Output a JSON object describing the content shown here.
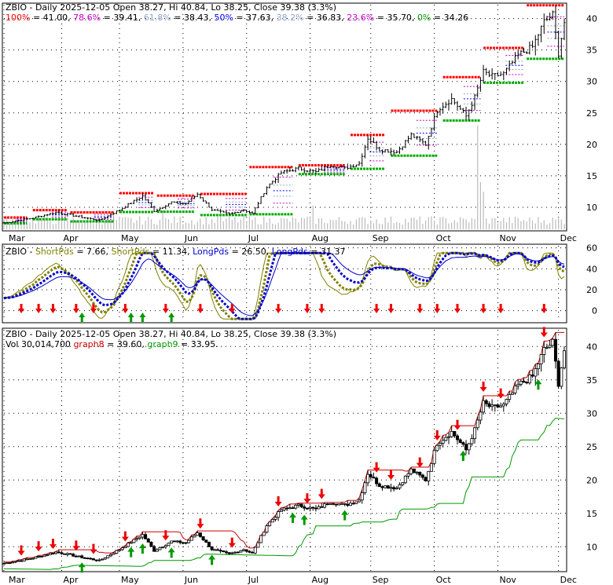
{
  "chart_data": [
    {
      "type": "candlestick",
      "panel": "fibonacci",
      "header": {
        "symbol": "ZBIO - Daily 2025-12-05 Open 38.27, Hi 40.84, Lo 38.25, Close 39.38 (3.3%)",
        "fib_levels": [
          {
            "label": "100%",
            "value": "41.00",
            "color": "#ff0000"
          },
          {
            "label": "78.6%",
            "value": "39.41",
            "color": "#cc00cc"
          },
          {
            "label": "61.8%",
            "value": "38.43",
            "color": "#8fa4c8"
          },
          {
            "label": "50%",
            "value": "37.63",
            "color": "#0000ff"
          },
          {
            "label": "38.2%",
            "value": "36.83",
            "color": "#8fa4c8"
          },
          {
            "label": "23.6%",
            "value": "35.70",
            "color": "#cc00cc"
          },
          {
            "label": "0%",
            "value": "34.26",
            "color": "#009900"
          }
        ]
      },
      "x_months": [
        "Mar",
        "Apr",
        "May",
        "Jun",
        "Jul",
        "Aug",
        "Sep",
        "Oct",
        "Nov",
        "Dec"
      ],
      "y_ticks": [
        10,
        15,
        20,
        25,
        30,
        35,
        40
      ],
      "ylim": [
        6.5,
        42.2
      ]
    },
    {
      "type": "line",
      "panel": "oscillator",
      "header": [
        {
          "text": "ZBIO - ",
          "color": "#000000"
        },
        {
          "text": "ShortPds",
          "color": "#808000"
        },
        {
          "text": " = 7.66, ",
          "color": "#000000"
        },
        {
          "text": "ShortPds",
          "color": "#808000"
        },
        {
          "text": " = 11.34, ",
          "color": "#000000"
        },
        {
          "text": "LongPds",
          "color": "#0000cc"
        },
        {
          "text": " = 26.50, ",
          "color": "#000000"
        },
        {
          "text": "LongPds",
          "color": "#0000cc"
        },
        {
          "text": " = 31.37",
          "color": "#000000"
        }
      ],
      "series": [
        {
          "name": "ShortPds",
          "color": "#808000",
          "last": 7.66
        },
        {
          "name": "ShortPds",
          "color": "#808000",
          "last": 11.34
        },
        {
          "name": "LongPds",
          "color": "#0000cc",
          "last": 26.5
        },
        {
          "name": "LongPds",
          "color": "#0000cc",
          "last": 31.37
        }
      ],
      "y_ticks": [
        0,
        20,
        40,
        60
      ],
      "ylim": [
        -10,
        62
      ]
    },
    {
      "type": "candlestick",
      "panel": "signals",
      "header": {
        "line1": "ZBIO - Daily 2025-12-05 Open 38.27, Hi 40.84, Lo 38.25, Close 39.38 (3.3%)",
        "vol": "Vol 30,014,700",
        "graph8_label": "graph8",
        "graph8_value": " = 39.60, ",
        "graph9_label": "graph9",
        "graph9_value": " = 33.95."
      },
      "series": [
        {
          "name": "graph8",
          "color": "#cc0000",
          "last": 39.6
        },
        {
          "name": "graph9",
          "color": "#009900",
          "last": 33.95
        }
      ],
      "x_months": [
        "Mar",
        "Apr",
        "May",
        "Jun",
        "Jul",
        "Aug",
        "Sep",
        "Oct",
        "Nov",
        "Dec"
      ],
      "y_ticks": [
        10,
        15,
        20,
        25,
        30,
        35,
        40
      ],
      "ylim": [
        6.5,
        42.5
      ]
    }
  ],
  "price_path": {
    "n_bars": 195,
    "anchors": [
      [
        0,
        7.5
      ],
      [
        10,
        8.3
      ],
      [
        18,
        9.2
      ],
      [
        25,
        8.6
      ],
      [
        33,
        7.9
      ],
      [
        40,
        9.6
      ],
      [
        48,
        11.8
      ],
      [
        52,
        9.4
      ],
      [
        58,
        10.8
      ],
      [
        63,
        10.6
      ],
      [
        67,
        12.1
      ],
      [
        72,
        9.6
      ],
      [
        78,
        8.9
      ],
      [
        83,
        9.6
      ],
      [
        86,
        9.0
      ],
      [
        91,
        13.2
      ],
      [
        96,
        15.5
      ],
      [
        102,
        16.2
      ],
      [
        108,
        15.6
      ],
      [
        113,
        16.7
      ],
      [
        118,
        16.2
      ],
      [
        123,
        17.0
      ],
      [
        126,
        21.0
      ],
      [
        130,
        19.2
      ],
      [
        136,
        18.8
      ],
      [
        141,
        21.5
      ],
      [
        146,
        20.0
      ],
      [
        150,
        25.5
      ],
      [
        155,
        27.2
      ],
      [
        160,
        24.5
      ],
      [
        163,
        27.5
      ],
      [
        166,
        31.5
      ],
      [
        169,
        30.8
      ],
      [
        173,
        31.2
      ],
      [
        178,
        34.2
      ],
      [
        183,
        35.5
      ],
      [
        187,
        39.5
      ],
      [
        190,
        40.6
      ],
      [
        192,
        34.5
      ],
      [
        194,
        39.4
      ]
    ]
  },
  "volume_spikes": [
    [
      164,
      22
    ],
    [
      165,
      10
    ],
    [
      166,
      8
    ],
    [
      107,
      5
    ],
    [
      55,
      4
    ],
    [
      75,
      3
    ],
    [
      20,
      3
    ]
  ],
  "up_arrow_indices": [
    27,
    44,
    48,
    58,
    72,
    100,
    104,
    118,
    159,
    185
  ],
  "down_arrow_indices": [
    6,
    12,
    17,
    25,
    31,
    42,
    56,
    68,
    79,
    95,
    105,
    110,
    129,
    134,
    144,
    150,
    157,
    166,
    172,
    187
  ]
}
